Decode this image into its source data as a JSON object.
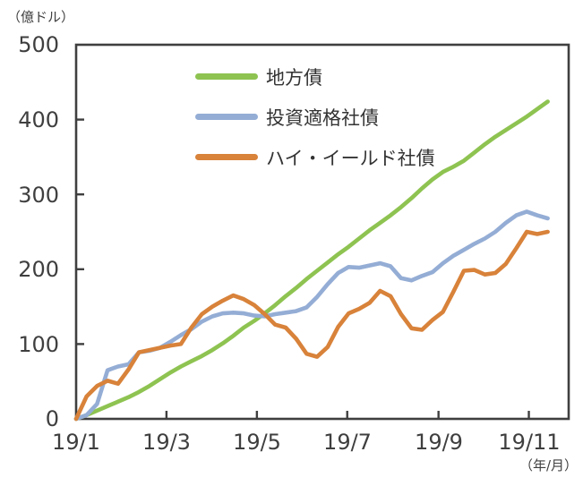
{
  "unit_labels": {
    "y": "（億ドル）",
    "x": "（年/月）"
  },
  "axes": {
    "y_ticks": [
      "500",
      "400",
      "300",
      "200",
      "100",
      "0"
    ],
    "x_ticks": [
      "19/1",
      "19/3",
      "19/5",
      "19/7",
      "19/9",
      "19/11"
    ]
  },
  "legend": [
    {
      "label": "地方債",
      "color": "#8ec351"
    },
    {
      "label": "投資適格社債",
      "color": "#94add5"
    },
    {
      "label": "ハイ・イールド社債",
      "color": "#d8823a"
    }
  ],
  "colors": {
    "axis": "#3f3f3f",
    "text": "#3f3f3f",
    "background": "#ffffff"
  },
  "chart_data": {
    "type": "line",
    "title": "",
    "ylabel": "（億ドル）",
    "xlabel": "（年/月）",
    "ylim": [
      0,
      500
    ],
    "yticks": [
      0,
      100,
      200,
      300,
      400,
      500
    ],
    "grid": false,
    "legend_position": "inside top-left",
    "x_description": "weekly cumulative values, 46 points, 2019/1 through mid 2019/11 (week index 0-45)",
    "xlim_weeks": [
      0,
      47
    ],
    "xtick_labels": [
      "19/1",
      "19/3",
      "19/5",
      "19/7",
      "19/9",
      "19/11"
    ],
    "xtick_week_positions": [
      0,
      8.62,
      17.25,
      25.87,
      34.58,
      43.2
    ],
    "series": [
      {
        "name": "地方債",
        "name_en": "municipal-bonds",
        "color": "#8ec351",
        "values": [
          0,
          5,
          11,
          17,
          23,
          29,
          36,
          44,
          53,
          62,
          70,
          77,
          84,
          92,
          101,
          111,
          122,
          131,
          141,
          152,
          164,
          175,
          187,
          198,
          209,
          220,
          230,
          241,
          252,
          262,
          272,
          283,
          295,
          308,
          320,
          330,
          337,
          345,
          356,
          367,
          377,
          386,
          395,
          404,
          414,
          424
        ]
      },
      {
        "name": "投資適格社債",
        "name_en": "investment-grade-corporate-bonds",
        "color": "#94add5",
        "values": [
          0,
          5,
          20,
          65,
          70,
          73,
          89,
          91,
          95,
          103,
          112,
          120,
          130,
          137,
          141,
          142,
          141,
          138,
          137,
          140,
          142,
          144,
          149,
          163,
          180,
          195,
          203,
          202,
          205,
          208,
          204,
          188,
          185,
          191,
          196,
          208,
          218,
          226,
          234,
          241,
          250,
          262,
          272,
          277,
          272,
          268
        ]
      },
      {
        "name": "ハイ・イールド社債",
        "name_en": "high-yield-corporate-bonds",
        "color": "#d8823a",
        "values": [
          0,
          30,
          44,
          51,
          47,
          66,
          89,
          92,
          95,
          98,
          100,
          122,
          140,
          150,
          158,
          165,
          160,
          152,
          140,
          126,
          122,
          107,
          87,
          83,
          96,
          123,
          141,
          147,
          155,
          171,
          164,
          140,
          121,
          119,
          132,
          143,
          170,
          198,
          199,
          193,
          195,
          207,
          228,
          250,
          247,
          250
        ]
      }
    ]
  }
}
